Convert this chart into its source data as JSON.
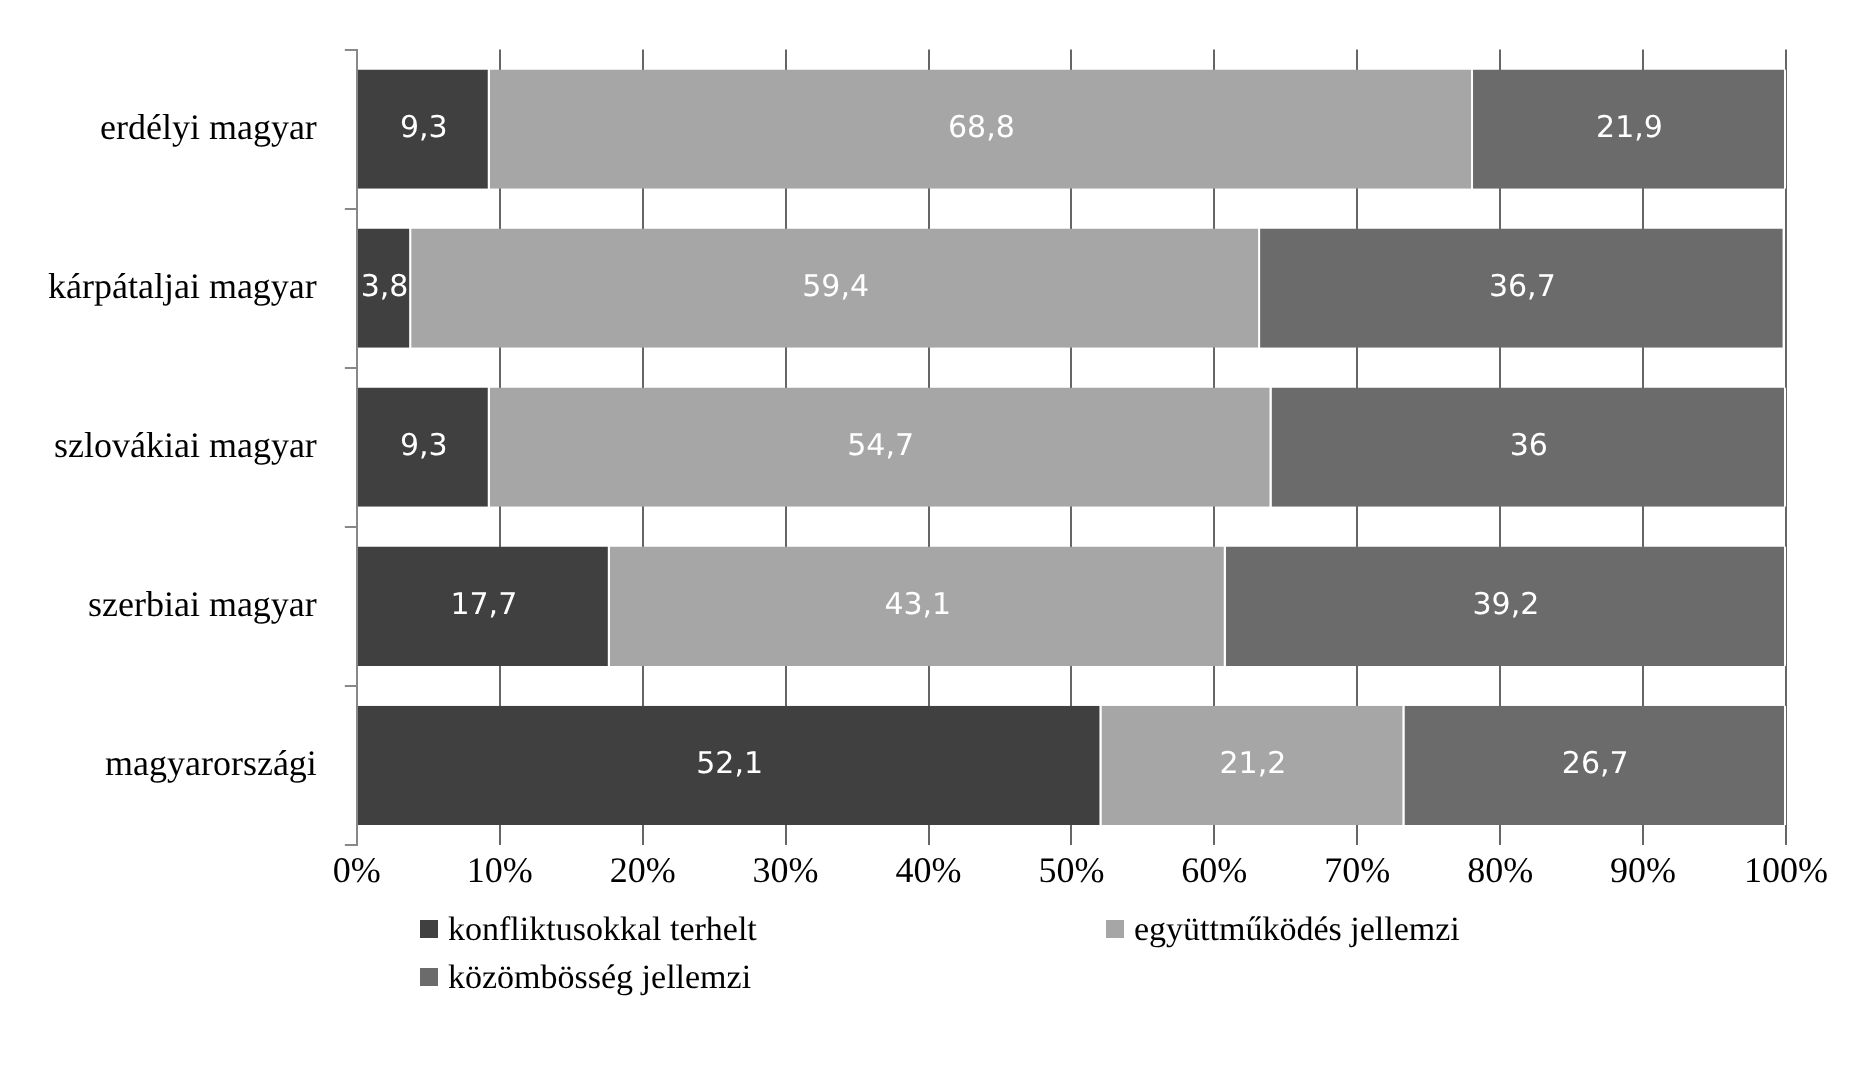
{
  "chart_data": {
    "type": "bar",
    "orientation": "horizontal",
    "stacked": true,
    "categories": [
      "erdélyi magyar",
      "kárpátaljai magyar",
      "szlovákiai magyar",
      "szerbiai magyar",
      "magyarországi"
    ],
    "series": [
      {
        "name": "konfliktusokkal terhelt",
        "color": "#404040",
        "values": [
          9.3,
          3.8,
          9.3,
          17.7,
          52.1
        ],
        "value_labels": [
          "9,3",
          "3,8",
          "9,3",
          "17,7",
          "52,1"
        ]
      },
      {
        "name": "együttműködés jellemzi",
        "color": "#a6a6a6",
        "values": [
          68.8,
          59.4,
          54.7,
          43.1,
          21.2
        ],
        "value_labels": [
          "68,8",
          "59,4",
          "54,7",
          "43,1",
          "21,2"
        ]
      },
      {
        "name": "közömbösség jellemzi",
        "color": "#6b6b6b",
        "values": [
          21.9,
          36.7,
          36,
          39.2,
          26.7
        ],
        "value_labels": [
          "21,9",
          "36,7",
          "36",
          "39,2",
          "26,7"
        ]
      }
    ],
    "xlim": [
      0,
      100
    ],
    "xticks": [
      {
        "value": 0,
        "label": "0%"
      },
      {
        "value": 10,
        "label": "10%"
      },
      {
        "value": 20,
        "label": "20%"
      },
      {
        "value": 30,
        "label": "30%"
      },
      {
        "value": 40,
        "label": "40%"
      },
      {
        "value": 50,
        "label": "50%"
      },
      {
        "value": 60,
        "label": "60%"
      },
      {
        "value": 70,
        "label": "70%"
      },
      {
        "value": 80,
        "label": "80%"
      },
      {
        "value": 90,
        "label": "90%"
      },
      {
        "value": 100,
        "label": "100%"
      }
    ],
    "grid": "x",
    "legend": "bottom"
  }
}
